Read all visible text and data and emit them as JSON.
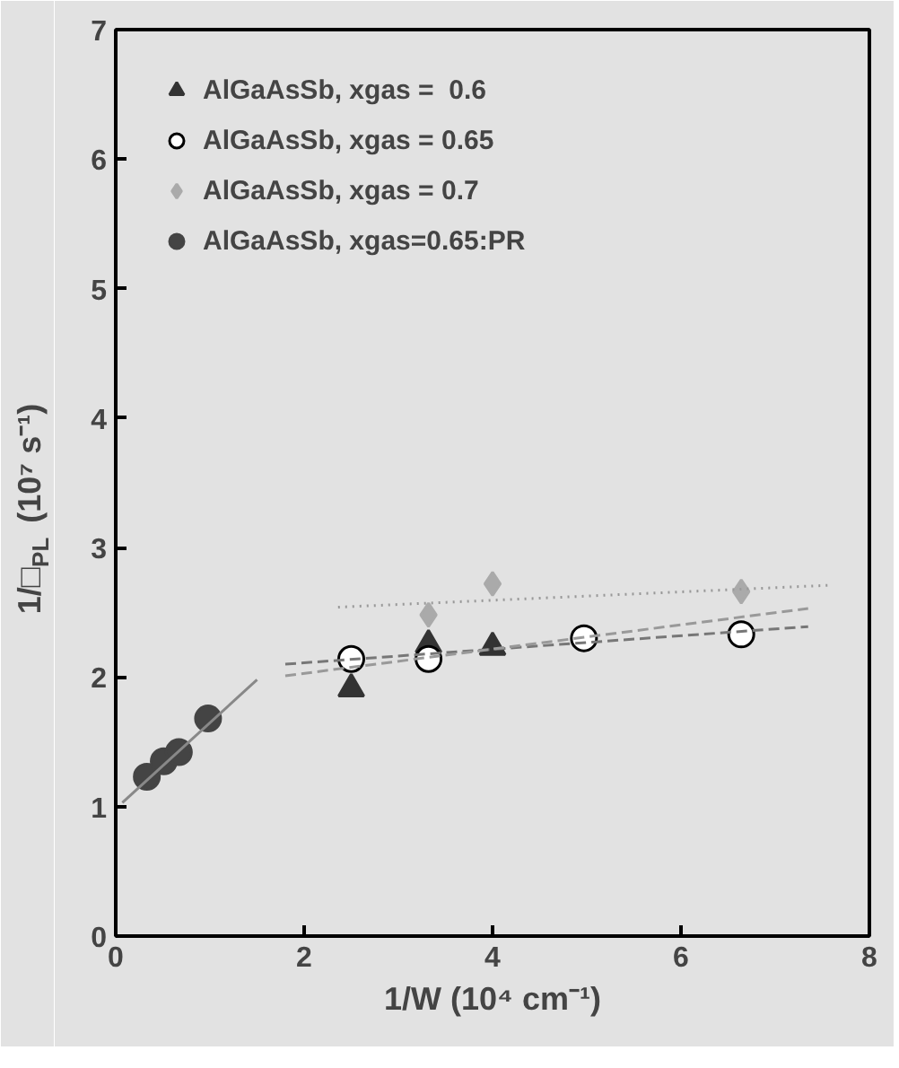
{
  "chart_data": {
    "type": "scatter",
    "xlabel": "1/W (10⁴ cm⁻¹)",
    "ylabel": "1/□$_{PL}$ (10⁷ s⁻¹)",
    "xlim": [
      0,
      8
    ],
    "ylim": [
      0,
      7
    ],
    "xticks": [
      0,
      2,
      4,
      6,
      8
    ],
    "yticks": [
      0,
      1,
      2,
      3,
      4,
      5,
      6,
      7
    ],
    "grid": false,
    "legend": "top left",
    "series": [
      {
        "name": "AlGaAsSb, xgas =  0.6",
        "color": "#333333",
        "marker": "triangle",
        "x": [
          2.5,
          3.32,
          4.0
        ],
        "values": [
          1.91,
          2.25,
          2.23
        ]
      },
      {
        "name": "AlGaAsSb, xgas = 0.65",
        "color": "#ffffff",
        "marker": "circle",
        "x": [
          2.5,
          3.32,
          4.97,
          6.64
        ],
        "values": [
          2.14,
          2.14,
          2.3,
          2.33
        ]
      },
      {
        "name": "AlGaAsSb, xgas = 0.7",
        "color": "#aaaaaa",
        "marker": "diamond",
        "x": [
          3.32,
          4.0,
          6.64
        ],
        "values": [
          2.48,
          2.72,
          2.66
        ]
      },
      {
        "name": "AlGaAsSb, xgas=0.65:PR",
        "color": "#444444",
        "marker": "circle",
        "x": [
          0.33,
          0.51,
          0.67,
          0.98
        ],
        "values": [
          1.23,
          1.35,
          1.42,
          1.68
        ]
      },
      {
        "type": "line",
        "color": "#888888",
        "line_style": "solid",
        "x": [
          0.07,
          1.5
        ],
        "values": [
          1.03,
          1.98
        ]
      },
      {
        "type": "line",
        "color": "#777777",
        "line_style": "dashed",
        "x": [
          1.8,
          7.35
        ],
        "values": [
          2.1,
          2.39
        ]
      },
      {
        "type": "line",
        "color": "#999999",
        "line_style": "dashed",
        "x": [
          1.8,
          7.35
        ],
        "values": [
          2.01,
          2.53
        ]
      },
      {
        "type": "line",
        "color": "#999999",
        "line_style": "dotted",
        "x": [
          2.36,
          7.6
        ],
        "values": [
          2.54,
          2.71
        ]
      }
    ]
  }
}
